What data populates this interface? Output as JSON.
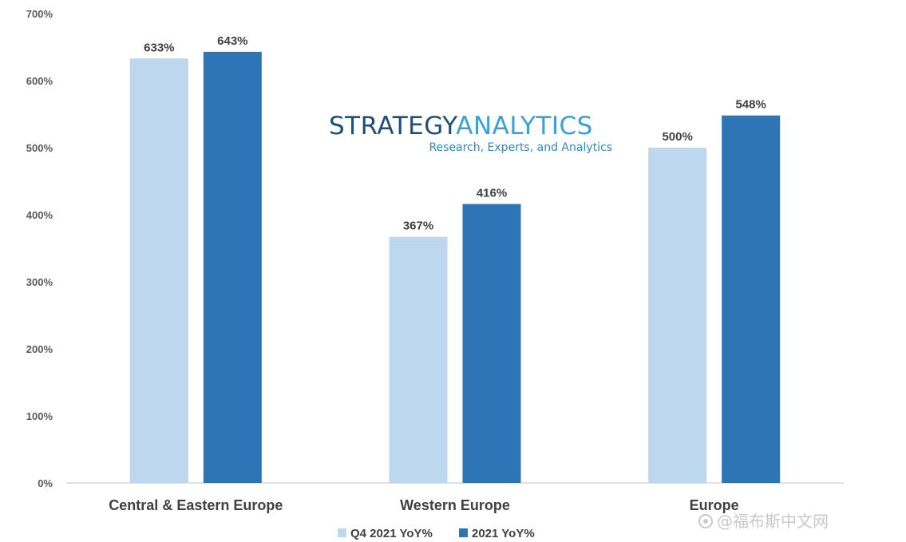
{
  "chart_data": {
    "type": "bar",
    "categories": [
      "Central & Eastern Europe",
      "Western Europe",
      "Europe"
    ],
    "series": [
      {
        "name": "Q4 2021 YoY%",
        "values": [
          633,
          367,
          500
        ],
        "color": "#bdd7ee",
        "labels": [
          "633%",
          "367%",
          "500%"
        ]
      },
      {
        "name": "2021 YoY%",
        "values": [
          643,
          416,
          548
        ],
        "color": "#2e75b6",
        "labels": [
          "643%",
          "416%",
          "548%"
        ]
      }
    ],
    "ylim": [
      0,
      700
    ],
    "yticks": [
      "0%",
      "100%",
      "200%",
      "300%",
      "400%",
      "500%",
      "600%",
      "700%"
    ],
    "grid": false,
    "legend_position": "bottom"
  },
  "logo": {
    "word1": "STRATEGY",
    "word2": "ANALYTICS",
    "tagline": "Research, Experts, and Analytics",
    "color_dark": "#1f4e79",
    "color_light": "#3aa0d8"
  },
  "watermark": "@福布斯中文网"
}
